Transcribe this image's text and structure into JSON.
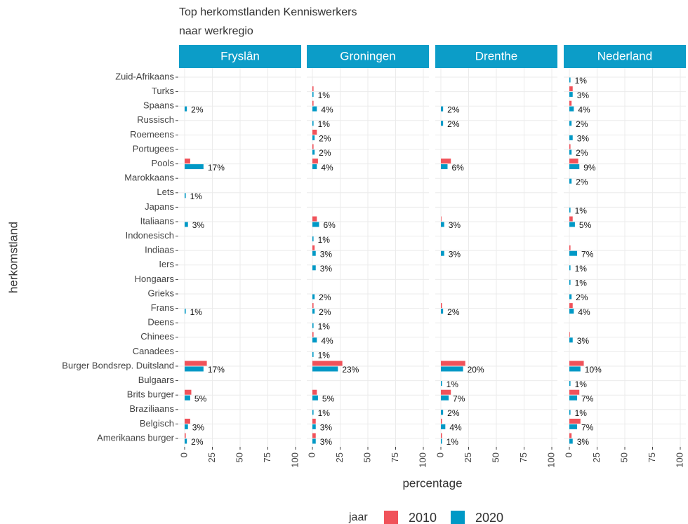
{
  "figure": {
    "title": "Top herkomstlanden Kenniswerkers",
    "subtitle": "naar werkregio",
    "xlabel": "percentage",
    "ylabel": "herkomstland",
    "legend_title": "jaar"
  },
  "chart_data": [
    {
      "type": "bar",
      "orientation": "horizontal",
      "title": "Fryslân",
      "grid": true,
      "xlim": [
        0,
        100
      ],
      "xticks": [
        0,
        25,
        50,
        75,
        100
      ],
      "categories": [
        "Zuid-Afrikaans",
        "Turks",
        "Spaans",
        "Russisch",
        "Roemeens",
        "Portugees",
        "Pools",
        "Marokkaans",
        "Lets",
        "Japans",
        "Italiaans",
        "Indonesisch",
        "Indiaas",
        "Iers",
        "Hongaars",
        "Grieks",
        "Frans",
        "Deens",
        "Chinees",
        "Canadees",
        "Burger Bondsrep. Duitsland",
        "Bulgaars",
        "Brits burger",
        "Braziliaans",
        "Belgisch",
        "Amerikaans burger"
      ],
      "series": [
        {
          "name": "2010",
          "color": "#f0525a",
          "values": [
            null,
            null,
            null,
            null,
            null,
            null,
            5,
            null,
            null,
            null,
            null,
            null,
            null,
            null,
            null,
            null,
            null,
            null,
            null,
            null,
            20,
            null,
            6,
            null,
            5,
            1
          ]
        },
        {
          "name": "2020",
          "color": "#0099c6",
          "values": [
            null,
            null,
            2,
            null,
            null,
            null,
            17,
            null,
            1,
            null,
            3,
            null,
            null,
            null,
            null,
            null,
            1,
            null,
            null,
            null,
            17,
            null,
            5,
            null,
            3,
            2
          ],
          "value_labels": [
            null,
            null,
            "2%",
            null,
            null,
            null,
            "17%",
            null,
            "1%",
            null,
            "3%",
            null,
            null,
            null,
            null,
            null,
            "1%",
            null,
            null,
            null,
            "17%",
            null,
            "5%",
            null,
            "3%",
            "2%"
          ]
        }
      ]
    },
    {
      "type": "bar",
      "orientation": "horizontal",
      "title": "Groningen",
      "grid": true,
      "xlim": [
        0,
        100
      ],
      "xticks": [
        0,
        25,
        50,
        75,
        100
      ],
      "series": [
        {
          "name": "2010",
          "color": "#f0525a",
          "values": [
            null,
            1,
            1,
            null,
            4,
            1,
            5,
            null,
            null,
            null,
            4,
            null,
            2,
            null,
            null,
            null,
            1,
            null,
            1,
            null,
            27,
            null,
            4,
            null,
            3,
            3
          ]
        },
        {
          "name": "2020",
          "color": "#0099c6",
          "values": [
            null,
            1,
            4,
            1,
            2,
            2,
            4,
            null,
            null,
            null,
            6,
            1,
            3,
            3,
            null,
            2,
            2,
            1,
            4,
            1,
            23,
            null,
            5,
            1,
            3,
            3
          ],
          "value_labels": [
            null,
            "1%",
            "4%",
            "1%",
            "2%",
            "2%",
            "4%",
            null,
            null,
            null,
            "6%",
            "1%",
            "3%",
            "3%",
            null,
            "2%",
            "2%",
            "1%",
            "4%",
            "1%",
            "23%",
            null,
            "5%",
            "1%",
            "3%",
            "3%"
          ]
        }
      ]
    },
    {
      "type": "bar",
      "orientation": "horizontal",
      "title": "Drenthe",
      "grid": true,
      "xlim": [
        0,
        100
      ],
      "xticks": [
        0,
        25,
        50,
        75,
        100
      ],
      "series": [
        {
          "name": "2010",
          "color": "#f0525a",
          "values": [
            null,
            null,
            null,
            null,
            null,
            null,
            9,
            null,
            null,
            null,
            0.5,
            null,
            null,
            null,
            null,
            null,
            1,
            null,
            null,
            null,
            22,
            null,
            9,
            null,
            1,
            1
          ]
        },
        {
          "name": "2020",
          "color": "#0099c6",
          "values": [
            null,
            null,
            2,
            2,
            null,
            null,
            6,
            null,
            null,
            null,
            3,
            null,
            3,
            null,
            null,
            null,
            2,
            null,
            null,
            null,
            20,
            1,
            7,
            2,
            4,
            1
          ],
          "value_labels": [
            null,
            null,
            "2%",
            "2%",
            null,
            null,
            "6%",
            null,
            null,
            null,
            "3%",
            null,
            "3%",
            null,
            null,
            null,
            "2%",
            null,
            null,
            null,
            "20%",
            "1%",
            "7%",
            "2%",
            "4%",
            "1%"
          ]
        }
      ]
    },
    {
      "type": "bar",
      "orientation": "horizontal",
      "title": "Nederland",
      "grid": true,
      "xlim": [
        0,
        100
      ],
      "xticks": [
        0,
        25,
        50,
        75,
        100
      ],
      "series": [
        {
          "name": "2010",
          "color": "#f0525a",
          "values": [
            null,
            3,
            2,
            null,
            null,
            1,
            8,
            null,
            null,
            null,
            3,
            null,
            1,
            null,
            null,
            null,
            3,
            null,
            0.5,
            null,
            13,
            null,
            9,
            null,
            10,
            2
          ]
        },
        {
          "name": "2020",
          "color": "#0099c6",
          "values": [
            1,
            3,
            4,
            2,
            3,
            2,
            9,
            2,
            null,
            1,
            5,
            null,
            7,
            1,
            1,
            2,
            4,
            null,
            3,
            null,
            10,
            1,
            7,
            1,
            7,
            3
          ],
          "value_labels": [
            "1%",
            "3%",
            "4%",
            "2%",
            "3%",
            "2%",
            "9%",
            "2%",
            null,
            "1%",
            "5%",
            null,
            "7%",
            "1%",
            "1%",
            "2%",
            "4%",
            null,
            "3%",
            null,
            "10%",
            "1%",
            "7%",
            "1%",
            "7%",
            "3%"
          ]
        }
      ]
    }
  ]
}
